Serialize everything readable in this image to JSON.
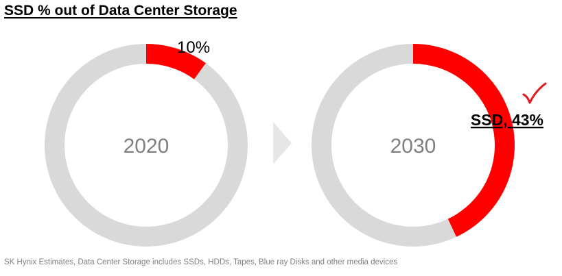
{
  "title": "SSD % out of Data Center Storage",
  "footnote": "SK Hynix Estimates, Data Center Storage includes SSDs, HDDs, Tapes, Blue ray Disks and other media devices",
  "colors": {
    "ssd": "#ff0000",
    "other": "#d9d9d9",
    "arrow": "#e6e6e6",
    "year_text": "#7f7f7f",
    "check": "#e31a1c"
  },
  "chart_data": [
    {
      "type": "pie",
      "center_label": "2020",
      "values": [
        10,
        90
      ],
      "highlight_label": "10%"
    },
    {
      "type": "pie",
      "center_label": "2030",
      "values": [
        43,
        57
      ],
      "highlight_label": "SSD, 43%"
    }
  ]
}
